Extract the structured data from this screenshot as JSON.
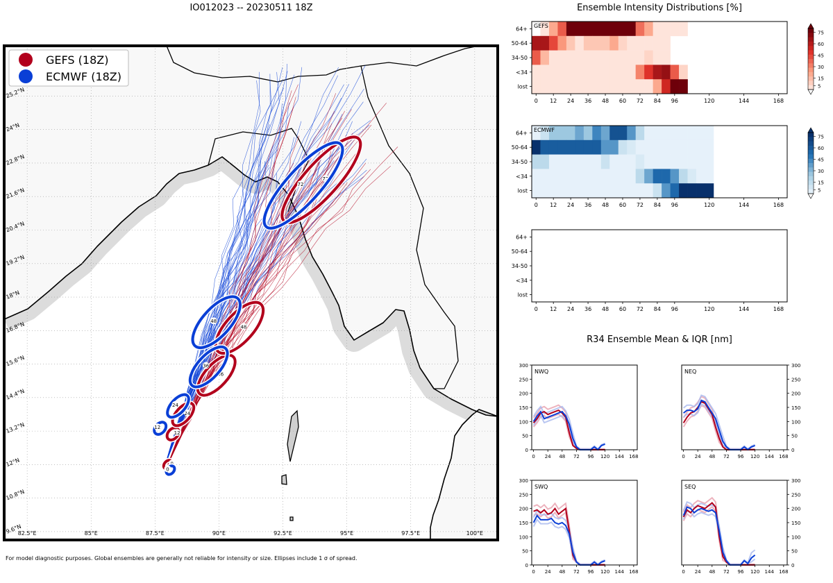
{
  "titles": {
    "main": "IO012023 -- 20230511 18Z",
    "intensity": "Ensemble Intensity Distributions [%]",
    "r34": "R34 Ensemble Mean & IQR [nm]"
  },
  "footnote": "For model diagnostic purposes. Global ensembles are generally not reliable for intensity or size. Ellipses include 1 σ of spread.",
  "colors": {
    "gefs": "#b2001c",
    "ecmwf": "#0a3fd6",
    "land": "#f8f8f8",
    "ocean": "#ffffff"
  },
  "map": {
    "legend": [
      {
        "label": "GEFS (18Z)",
        "color": "#b2001c"
      },
      {
        "label": "ECMWF (18Z)",
        "color": "#0a3fd6"
      }
    ],
    "lon_labels": [
      "82.5°E",
      "85°E",
      "87.5°E",
      "90°E",
      "92.5°E",
      "95°E",
      "97.5°E",
      "100°E"
    ],
    "lat_labels": [
      "9.6°N",
      "10.8°N",
      "12°N",
      "13.2°N",
      "14.4°N",
      "15.6°N",
      "16.8°N",
      "18°N",
      "19.2°N",
      "20.4°N",
      "21.6°N",
      "22.8°N",
      "24°N",
      "25.2°N"
    ],
    "lon_values": [
      82.5,
      85,
      87.5,
      90,
      92.5,
      95,
      97.5,
      100
    ],
    "lat_values": [
      9.6,
      10.8,
      12,
      13.2,
      14.4,
      15.6,
      16.8,
      18,
      19.2,
      20.4,
      21.6,
      22.8,
      24,
      25.2
    ],
    "lon_range": [
      81.6,
      100.9
    ],
    "lat_range": [
      9.3,
      27.0
    ],
    "gefs_ellipses": [
      {
        "hour": "0",
        "lon": 88.0,
        "lat": 12.0
      },
      {
        "hour": "12",
        "lon": 88.2,
        "lat": 13.1
      },
      {
        "hour": "24",
        "lon": 88.6,
        "lat": 13.8
      },
      {
        "hour": "36",
        "lon": 89.9,
        "lat": 15.2
      },
      {
        "hour": "48",
        "lon": 90.8,
        "lat": 16.9
      },
      {
        "hour": "72",
        "lon": 94.0,
        "lat": 22.2
      }
    ],
    "ecmwf_ellipses": [
      {
        "hour": "0",
        "lon": 88.1,
        "lat": 11.8
      },
      {
        "hour": "12",
        "lon": 87.7,
        "lat": 13.3
      },
      {
        "hour": "24",
        "lon": 88.4,
        "lat": 14.1
      },
      {
        "hour": "36",
        "lon": 89.6,
        "lat": 15.5
      },
      {
        "hour": "48",
        "lon": 89.9,
        "lat": 17.1
      },
      {
        "hour": "72",
        "lon": 93.3,
        "lat": 22.0
      }
    ]
  },
  "chart_data": [
    {
      "type": "heatmap",
      "title": "GEFS",
      "rows": [
        "64+",
        "50-64",
        "34-50",
        "<34",
        "lost"
      ],
      "xticks": [
        0,
        12,
        24,
        36,
        48,
        60,
        72,
        84,
        96,
        120,
        144,
        168
      ],
      "step_hours": 6,
      "colorbar_ticks": [
        5,
        15,
        30,
        45,
        60,
        75
      ],
      "values": [
        [
          0,
          5,
          25,
          45,
          85,
          85,
          85,
          85,
          85,
          85,
          85,
          85,
          40,
          25,
          5,
          5,
          5,
          5,
          0,
          0
        ],
        [
          70,
          70,
          50,
          30,
          15,
          5,
          15,
          15,
          15,
          25,
          10,
          5,
          5,
          5,
          5,
          5,
          0,
          0,
          0,
          0
        ],
        [
          45,
          20,
          5,
          5,
          5,
          5,
          5,
          5,
          5,
          5,
          5,
          5,
          5,
          10,
          5,
          5,
          0,
          0,
          0,
          0
        ],
        [
          5,
          5,
          5,
          5,
          5,
          5,
          5,
          5,
          5,
          5,
          5,
          5,
          35,
          55,
          70,
          75,
          45,
          10,
          0,
          0
        ],
        [
          5,
          5,
          5,
          5,
          5,
          5,
          5,
          5,
          5,
          5,
          5,
          5,
          5,
          5,
          25,
          60,
          85,
          85,
          0,
          0
        ]
      ]
    },
    {
      "type": "heatmap",
      "title": "ECMWF",
      "rows": [
        "64+",
        "50-64",
        "34-50",
        "<34",
        "lost"
      ],
      "xticks": [
        0,
        12,
        24,
        36,
        48,
        60,
        72,
        84,
        96,
        120,
        144,
        168
      ],
      "step_hours": 6,
      "colorbar_ticks": [
        5,
        15,
        30,
        45,
        60,
        75
      ],
      "values": [
        [
          5,
          15,
          30,
          30,
          30,
          40,
          30,
          50,
          40,
          70,
          70,
          45,
          20,
          5,
          5,
          5,
          5,
          5,
          5,
          5,
          5
        ],
        [
          85,
          65,
          65,
          65,
          65,
          65,
          65,
          65,
          45,
          45,
          15,
          10,
          5,
          5,
          5,
          5,
          5,
          5,
          5,
          5,
          5
        ],
        [
          20,
          20,
          5,
          5,
          5,
          5,
          5,
          5,
          15,
          5,
          5,
          5,
          10,
          5,
          5,
          5,
          5,
          5,
          5,
          5,
          5
        ],
        [
          5,
          5,
          5,
          5,
          5,
          5,
          5,
          5,
          5,
          5,
          5,
          5,
          20,
          40,
          60,
          60,
          45,
          20,
          10,
          5,
          5
        ],
        [
          5,
          5,
          5,
          5,
          5,
          5,
          5,
          5,
          5,
          5,
          5,
          5,
          5,
          5,
          15,
          45,
          60,
          85,
          85,
          85,
          85
        ]
      ]
    },
    {
      "type": "heatmap",
      "title": "",
      "rows": [
        "64+",
        "50-64",
        "34-50",
        "<34",
        "lost"
      ],
      "xticks": [
        0,
        12,
        24,
        36,
        48,
        60,
        72,
        84,
        96,
        120,
        144,
        168
      ],
      "values": []
    },
    {
      "type": "line",
      "title": "NWQ",
      "x": [
        0,
        6,
        12,
        18,
        24,
        30,
        36,
        42,
        48,
        54,
        60,
        66,
        72,
        78,
        84,
        90,
        96,
        102,
        108,
        114,
        120
      ],
      "xticks": [
        0,
        24,
        48,
        72,
        96,
        120,
        144,
        168
      ],
      "yticks": [
        0,
        50,
        100,
        150,
        200,
        250,
        300
      ],
      "ylim": [
        0,
        300
      ],
      "yaxis_side": "left",
      "series": [
        {
          "name": "GEFS",
          "values": [
            95,
            110,
            130,
            135,
            125,
            130,
            135,
            140,
            130,
            115,
            60,
            15,
            5,
            0,
            0,
            0,
            0,
            0,
            0,
            0,
            0
          ]
        },
        {
          "name": "ECMWF",
          "values": [
            100,
            120,
            135,
            110,
            115,
            120,
            125,
            130,
            135,
            120,
            90,
            40,
            10,
            0,
            0,
            0,
            0,
            10,
            0,
            15,
            20
          ]
        }
      ]
    },
    {
      "type": "line",
      "title": "NEQ",
      "x": [
        0,
        6,
        12,
        18,
        24,
        30,
        36,
        42,
        48,
        54,
        60,
        66,
        72,
        78,
        84,
        90,
        96,
        102,
        108,
        114,
        120
      ],
      "xticks": [
        0,
        24,
        48,
        72,
        96,
        120,
        144,
        168
      ],
      "yticks": [
        0,
        50,
        100,
        150,
        200,
        250,
        300
      ],
      "ylim": [
        0,
        300
      ],
      "yaxis_side": "right",
      "series": [
        {
          "name": "GEFS",
          "values": [
            95,
            115,
            130,
            135,
            150,
            170,
            165,
            145,
            125,
            80,
            40,
            10,
            0,
            0,
            0,
            0,
            0,
            0,
            0,
            0,
            0
          ]
        },
        {
          "name": "ECMWF",
          "values": [
            130,
            140,
            140,
            135,
            145,
            175,
            170,
            150,
            130,
            110,
            70,
            30,
            10,
            0,
            0,
            0,
            0,
            10,
            0,
            10,
            15
          ]
        }
      ]
    },
    {
      "type": "line",
      "title": "SWQ",
      "x": [
        0,
        6,
        12,
        18,
        24,
        30,
        36,
        42,
        48,
        54,
        60,
        66,
        72,
        78,
        84,
        90,
        96,
        102,
        108,
        114,
        120
      ],
      "xticks": [
        0,
        24,
        48,
        72,
        96,
        120,
        144,
        168
      ],
      "yticks": [
        0,
        50,
        100,
        150,
        200,
        250,
        300
      ],
      "ylim": [
        0,
        300
      ],
      "yaxis_side": "left",
      "series": [
        {
          "name": "GEFS",
          "values": [
            190,
            195,
            185,
            195,
            180,
            185,
            200,
            180,
            190,
            200,
            120,
            35,
            10,
            0,
            0,
            0,
            0,
            0,
            0,
            0,
            0
          ]
        },
        {
          "name": "ECMWF",
          "values": [
            150,
            175,
            160,
            160,
            160,
            165,
            150,
            145,
            150,
            140,
            110,
            45,
            10,
            0,
            0,
            0,
            0,
            10,
            0,
            10,
            15
          ]
        }
      ]
    },
    {
      "type": "line",
      "title": "SEQ",
      "x": [
        0,
        6,
        12,
        18,
        24,
        30,
        36,
        42,
        48,
        54,
        60,
        66,
        72,
        78,
        84,
        90,
        96,
        102,
        108,
        114,
        120
      ],
      "xticks": [
        0,
        24,
        48,
        72,
        96,
        120,
        144,
        168
      ],
      "yticks": [
        0,
        50,
        100,
        150,
        200,
        250,
        300
      ],
      "ylim": [
        0,
        300
      ],
      "yaxis_side": "right",
      "series": [
        {
          "name": "GEFS",
          "values": [
            170,
            195,
            185,
            200,
            210,
            205,
            200,
            210,
            220,
            205,
            100,
            30,
            10,
            0,
            0,
            0,
            0,
            0,
            0,
            0,
            0
          ]
        },
        {
          "name": "ECMWF",
          "values": [
            175,
            205,
            200,
            185,
            195,
            200,
            195,
            190,
            195,
            185,
            120,
            45,
            15,
            0,
            0,
            0,
            0,
            15,
            5,
            25,
            35
          ]
        }
      ]
    }
  ]
}
